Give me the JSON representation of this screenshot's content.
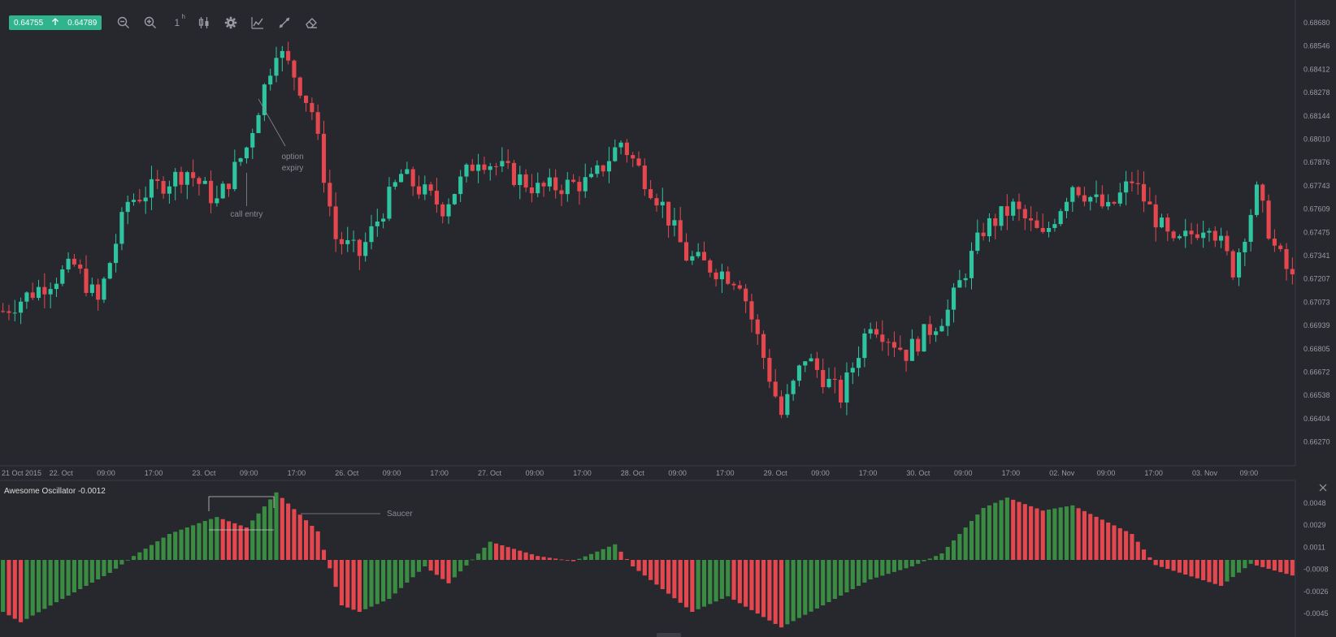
{
  "toolbar": {
    "bid": "0.64755",
    "ask": "0.64789",
    "timeframe": "1",
    "timeframe_unit": "h",
    "icons": [
      "zoom-out-icon",
      "zoom-in-icon",
      "timeframe-selector",
      "candlestick-icon",
      "gear-icon",
      "indicators-icon",
      "drawing-tools-icon",
      "eraser-icon"
    ]
  },
  "indicator": {
    "label": "Awesome Oscillator -0.0012"
  },
  "colors": {
    "up": "#2ec4a0",
    "down": "#e5474f",
    "ao_up": "#3a8c43",
    "ao_down": "#e5474f",
    "bg": "#27272e",
    "axis_text": "#9a9aa3",
    "annotation": "#8a8a92"
  },
  "chart_data": [
    {
      "type": "candlestick",
      "title": "",
      "price_ticks": [
        "0.68680",
        "0.68546",
        "0.68412",
        "0.68278",
        "0.68144",
        "0.68010",
        "0.67876",
        "0.67743",
        "0.67609",
        "0.67475",
        "0.67341",
        "0.67207",
        "0.67073",
        "0.66939",
        "0.66805",
        "0.66672",
        "0.66538",
        "0.66404",
        "0.66270"
      ],
      "time_ticks": [
        "21 Oct 2015",
        "22. Oct",
        "09:00",
        "17:00",
        "23. Oct",
        "09:00",
        "17:00",
        "26. Oct",
        "09:00",
        "17:00",
        "27. Oct",
        "09:00",
        "17:00",
        "28. Oct",
        "09:00",
        "17:00",
        "29. Oct",
        "09:00",
        "17:00",
        "30. Oct",
        "09:00",
        "17:00",
        "02. Nov",
        "09:00",
        "17:00",
        "03. Nov",
        "09:00"
      ],
      "ylim": [
        0.662,
        0.6875
      ],
      "candle_count": 218,
      "key_points": [
        {
          "i": 0,
          "price": 0.6705
        },
        {
          "i": 12,
          "price": 0.673
        },
        {
          "i": 16,
          "price": 0.671
        },
        {
          "i": 21,
          "price": 0.6765
        },
        {
          "i": 31,
          "price": 0.6782
        },
        {
          "i": 36,
          "price": 0.6765
        },
        {
          "i": 41,
          "price": 0.6795
        },
        {
          "i": 46,
          "price": 0.685
        },
        {
          "i": 49,
          "price": 0.6835
        },
        {
          "i": 52,
          "price": 0.6815
        },
        {
          "i": 56,
          "price": 0.6745
        },
        {
          "i": 60,
          "price": 0.6736
        },
        {
          "i": 67,
          "price": 0.678
        },
        {
          "i": 74,
          "price": 0.6762
        },
        {
          "i": 80,
          "price": 0.679
        },
        {
          "i": 90,
          "price": 0.6772
        },
        {
          "i": 99,
          "price": 0.6776
        },
        {
          "i": 104,
          "price": 0.6798
        },
        {
          "i": 111,
          "price": 0.6763
        },
        {
          "i": 115,
          "price": 0.6735
        },
        {
          "i": 124,
          "price": 0.6722
        },
        {
          "i": 131,
          "price": 0.6648
        },
        {
          "i": 135,
          "price": 0.668
        },
        {
          "i": 141,
          "price": 0.6658
        },
        {
          "i": 146,
          "price": 0.67
        },
        {
          "i": 152,
          "price": 0.6682
        },
        {
          "i": 159,
          "price": 0.6705
        },
        {
          "i": 165,
          "price": 0.675
        },
        {
          "i": 170,
          "price": 0.6762
        },
        {
          "i": 175,
          "price": 0.6745
        },
        {
          "i": 180,
          "price": 0.6775
        },
        {
          "i": 186,
          "price": 0.676
        },
        {
          "i": 190,
          "price": 0.6777
        },
        {
          "i": 197,
          "price": 0.674
        },
        {
          "i": 203,
          "price": 0.6755
        },
        {
          "i": 207,
          "price": 0.6728
        },
        {
          "i": 211,
          "price": 0.677
        },
        {
          "i": 214,
          "price": 0.674
        },
        {
          "i": 217,
          "price": 0.6722
        }
      ],
      "annotations": [
        {
          "text": "call entry",
          "candle_index": 41
        },
        {
          "text_lines": [
            "option",
            "expiry"
          ],
          "candle_index": 43
        }
      ]
    },
    {
      "type": "histogram",
      "series_name": "Awesome Oscillator",
      "y_ticks": [
        "0.0048",
        "0.0029",
        "0.0011",
        "-0.0008",
        "-0.0026",
        "-0.0045"
      ],
      "ylim": [
        -0.0055,
        0.006
      ],
      "bar_count": 218,
      "key_points": [
        {
          "i": 0,
          "v": -0.004
        },
        {
          "i": 3,
          "v": -0.0048
        },
        {
          "i": 10,
          "v": -0.003
        },
        {
          "i": 18,
          "v": -0.001
        },
        {
          "i": 22,
          "v": 0.0003
        },
        {
          "i": 28,
          "v": 0.002
        },
        {
          "i": 34,
          "v": 0.003
        },
        {
          "i": 36,
          "v": 0.0033
        },
        {
          "i": 41,
          "v": 0.0025
        },
        {
          "i": 46,
          "v": 0.0052
        },
        {
          "i": 53,
          "v": 0.0022
        },
        {
          "i": 57,
          "v": -0.0035
        },
        {
          "i": 60,
          "v": -0.004
        },
        {
          "i": 65,
          "v": -0.003
        },
        {
          "i": 71,
          "v": -0.0005
        },
        {
          "i": 75,
          "v": -0.0018
        },
        {
          "i": 82,
          "v": 0.0014
        },
        {
          "i": 90,
          "v": 0.0003
        },
        {
          "i": 96,
          "v": -0.0001
        },
        {
          "i": 103,
          "v": 0.0012
        },
        {
          "i": 106,
          "v": -0.0005
        },
        {
          "i": 116,
          "v": -0.004
        },
        {
          "i": 122,
          "v": -0.0028
        },
        {
          "i": 131,
          "v": -0.0052
        },
        {
          "i": 138,
          "v": -0.0035
        },
        {
          "i": 146,
          "v": -0.0015
        },
        {
          "i": 153,
          "v": -0.0005
        },
        {
          "i": 158,
          "v": 0.0005
        },
        {
          "i": 165,
          "v": 0.004
        },
        {
          "i": 169,
          "v": 0.0048
        },
        {
          "i": 175,
          "v": 0.0038
        },
        {
          "i": 180,
          "v": 0.0042
        },
        {
          "i": 190,
          "v": 0.002
        },
        {
          "i": 194,
          "v": -0.0004
        },
        {
          "i": 205,
          "v": -0.002
        },
        {
          "i": 210,
          "v": -0.0003
        },
        {
          "i": 217,
          "v": -0.0012
        }
      ],
      "annotations": [
        {
          "text": "Saucer"
        }
      ]
    }
  ]
}
